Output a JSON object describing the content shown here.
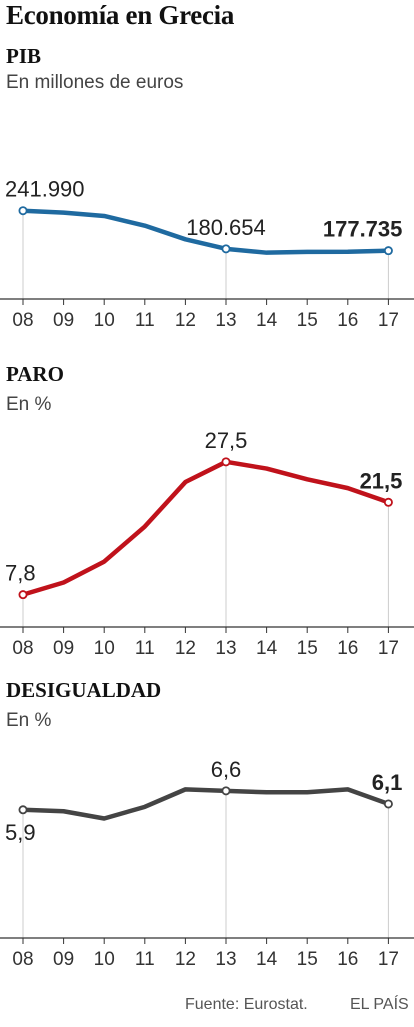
{
  "title": "Economía en Grecia",
  "footer": {
    "source": "Fuente: Eurostat.",
    "brand": "EL PAÍS"
  },
  "colors": {
    "pib": "#1f6aa0",
    "paro": "#c0121b",
    "desigualdad": "#444444",
    "axis": "#333333",
    "grid": "#cccccc"
  },
  "chart_data": [
    {
      "type": "line",
      "title": "PIB",
      "unit": "En millones de euros",
      "categories": [
        "08",
        "09",
        "10",
        "11",
        "12",
        "13",
        "14",
        "15",
        "16",
        "17"
      ],
      "values": [
        241990,
        239000,
        233500,
        218000,
        196000,
        180654,
        174500,
        175800,
        176000,
        177735
      ],
      "ylim": [
        100000,
        330000
      ],
      "labels": [
        {
          "index": 0,
          "text": "241.990",
          "bold": false,
          "pos": "above"
        },
        {
          "index": 5,
          "text": "180.654",
          "bold": false,
          "pos": "above"
        },
        {
          "index": 9,
          "text": "177.735",
          "bold": true,
          "pos": "above"
        }
      ]
    },
    {
      "type": "line",
      "title": "PARO",
      "unit": "En %",
      "categories": [
        "08",
        "09",
        "10",
        "11",
        "12",
        "13",
        "14",
        "15",
        "16",
        "17"
      ],
      "values": [
        7.8,
        9.6,
        12.7,
        17.9,
        24.5,
        27.5,
        26.5,
        24.9,
        23.6,
        21.5
      ],
      "ylim": [
        3,
        34
      ],
      "labels": [
        {
          "index": 0,
          "text": "7,8",
          "bold": false,
          "pos": "above"
        },
        {
          "index": 5,
          "text": "27,5",
          "bold": false,
          "pos": "above"
        },
        {
          "index": 9,
          "text": "21,5",
          "bold": true,
          "pos": "above"
        }
      ]
    },
    {
      "type": "line",
      "title": "DESIGUALDAD",
      "unit": "En %",
      "categories": [
        "08",
        "09",
        "10",
        "11",
        "12",
        "13",
        "14",
        "15",
        "16",
        "17"
      ],
      "values": [
        5.9,
        5.85,
        5.6,
        6.0,
        6.6,
        6.55,
        6.5,
        6.5,
        6.6,
        6.1
      ],
      "ylim": [
        1.5,
        8.5
      ],
      "labels": [
        {
          "index": 0,
          "text": "5,9",
          "bold": false,
          "pos": "below"
        },
        {
          "index": 5,
          "text": "6,6",
          "bold": false,
          "pos": "above"
        },
        {
          "index": 9,
          "text": "6,1",
          "bold": true,
          "pos": "above"
        }
      ]
    }
  ]
}
